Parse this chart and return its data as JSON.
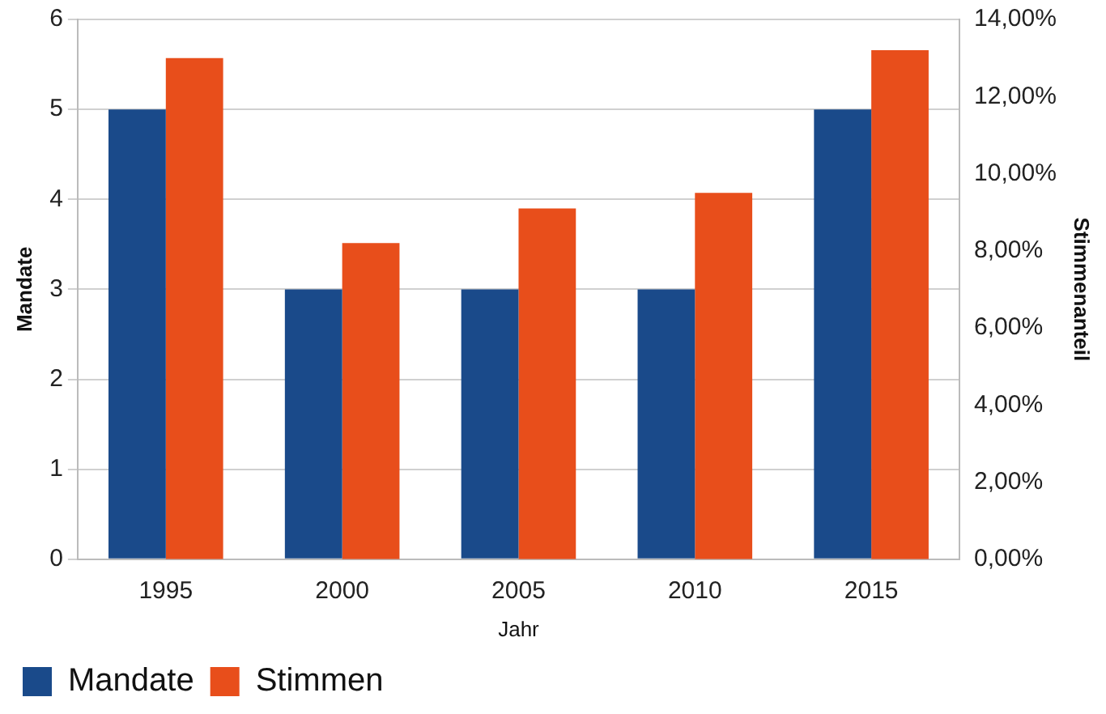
{
  "chart_data": {
    "type": "bar",
    "xlabel": "Jahr",
    "ylabel": "Mandate",
    "y2label": "Stimmenanteil",
    "categories": [
      "1995",
      "2000",
      "2005",
      "2010",
      "2015"
    ],
    "series": [
      {
        "name": "Mandate",
        "color": "#1a4a8a",
        "values": [
          5,
          3,
          3,
          3,
          5
        ]
      },
      {
        "name": "Stimmen",
        "color": "#e84e1b",
        "values": [
          13.0,
          8.2,
          9.1,
          9.5,
          13.2
        ],
        "axis": "y2"
      }
    ],
    "ylim": [
      0,
      6
    ],
    "yticks": [
      0,
      1,
      2,
      3,
      4,
      5,
      6
    ],
    "y2lim": [
      0,
      14
    ],
    "y2ticks": [
      {
        "value": 0,
        "label": "0,00%"
      },
      {
        "value": 2,
        "label": "2,00%"
      },
      {
        "value": 4,
        "label": "4,00%"
      },
      {
        "value": 6,
        "label": "6,00%"
      },
      {
        "value": 8,
        "label": "8,00%"
      },
      {
        "value": 10,
        "label": "10,00%"
      },
      {
        "value": 12,
        "label": "12,00%"
      },
      {
        "value": 14,
        "label": "14,00%"
      }
    ],
    "grid": "y",
    "legend": "bottom left"
  }
}
